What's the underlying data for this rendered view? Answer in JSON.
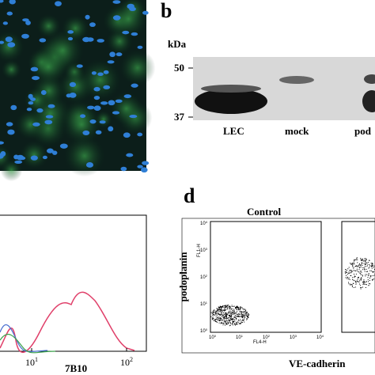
{
  "panel_b": {
    "label": "b",
    "unit": "kDa",
    "markers": [
      "50",
      "37"
    ],
    "lanes": [
      "LEC",
      "mock",
      "pod"
    ]
  },
  "panel_c": {
    "xlabel": "7B10",
    "ticks": [
      {
        "base": "10",
        "exp": "1"
      },
      {
        "base": "10",
        "exp": "2"
      }
    ]
  },
  "panel_d": {
    "label": "d",
    "title": "Control",
    "ylabel": "podoplanin",
    "xlabel": "VE-cadherin",
    "yticks": [
      {
        "base": "10",
        "exp": "4"
      },
      {
        "base": "10",
        "exp": "3"
      },
      {
        "base": "10",
        "exp": "2"
      },
      {
        "base": "10",
        "exp": "1"
      },
      {
        "base": "10",
        "exp": "0"
      }
    ],
    "xticks": [
      {
        "base": "10",
        "exp": "0"
      },
      {
        "base": "10",
        "exp": "1"
      },
      {
        "base": "10",
        "exp": "2"
      },
      {
        "base": "10",
        "exp": "3"
      },
      {
        "base": "10",
        "exp": "4"
      }
    ],
    "y_channel": "FL1-H",
    "x_channel": "FL4-H"
  }
}
